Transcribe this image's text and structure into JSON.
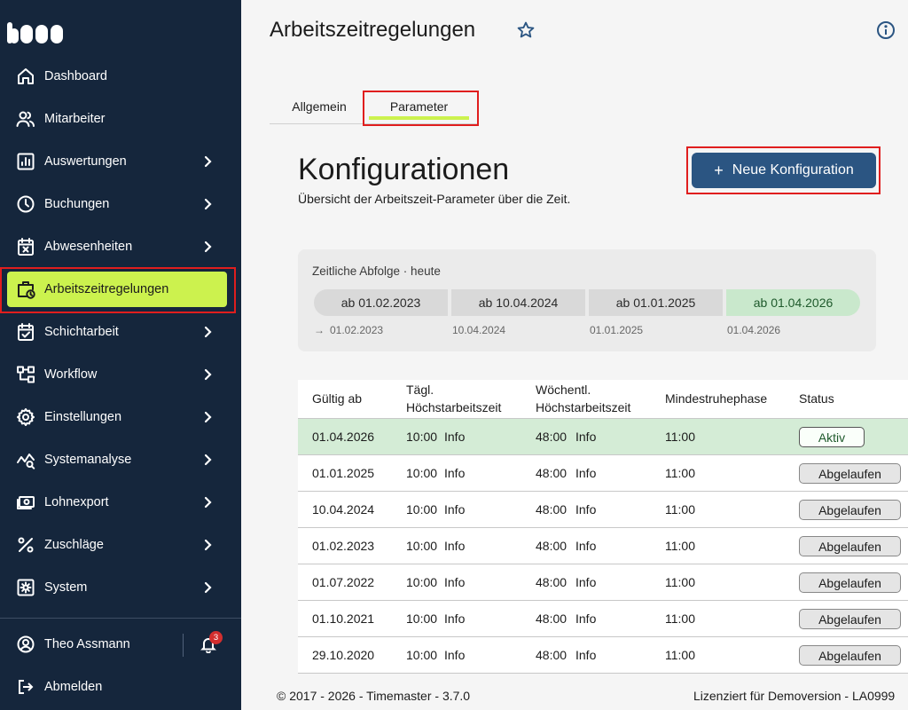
{
  "sidebar": {
    "logo_icon": "timemaster-logo",
    "items": [
      {
        "label": "Dashboard",
        "icon": "home-icon",
        "chevron": false
      },
      {
        "label": "Mitarbeiter",
        "icon": "users-icon",
        "chevron": false
      },
      {
        "label": "Auswertungen",
        "icon": "chart-icon",
        "chevron": true
      },
      {
        "label": "Buchungen",
        "icon": "clock-icon",
        "chevron": true
      },
      {
        "label": "Abwesenheiten",
        "icon": "calendar-x-icon",
        "chevron": true
      },
      {
        "label": "Arbeitszeitregelungen",
        "icon": "briefcase-clock-icon",
        "chevron": false,
        "active": true
      },
      {
        "label": "Schichtarbeit",
        "icon": "calendar-check-icon",
        "chevron": true
      },
      {
        "label": "Workflow",
        "icon": "workflow-icon",
        "chevron": true
      },
      {
        "label": "Einstellungen",
        "icon": "gear-icon",
        "chevron": true
      },
      {
        "label": "Systemanalyse",
        "icon": "analysis-icon",
        "chevron": true
      },
      {
        "label": "Lohnexport",
        "icon": "money-icon",
        "chevron": true
      },
      {
        "label": "Zuschläge",
        "icon": "percent-icon",
        "chevron": true
      },
      {
        "label": "System",
        "icon": "system-gear-icon",
        "chevron": true
      }
    ],
    "user": {
      "name": "Theo Assmann",
      "notifications": "3"
    },
    "logout": "Abmelden",
    "active_color": "#ccf24e",
    "bg_color": "#15263c"
  },
  "header": {
    "title": "Arbeitszeitregelungen",
    "favorite_icon": "star-icon",
    "info_icon": "info-icon"
  },
  "tabs": [
    {
      "label": "Allgemein",
      "selected": false
    },
    {
      "label": "Parameter",
      "selected": true
    }
  ],
  "section": {
    "title": "Konfigurationen",
    "subtitle": "Übersicht der Arbeitszeit-Parameter über die Zeit.",
    "new_button": "Neue Konfiguration",
    "new_button_icon": "+",
    "accent_color": "#2b5582"
  },
  "timeline": {
    "title": "Zeitliche Abfolge · heute",
    "today_marker": "→",
    "segments": [
      {
        "label": "ab 01.02.2023",
        "date": "01.02.2023",
        "active": false
      },
      {
        "label": "ab 10.04.2024",
        "date": "10.04.2024",
        "active": false
      },
      {
        "label": "ab 01.01.2025",
        "date": "01.01.2025",
        "active": false
      },
      {
        "label": "ab 01.04.2026",
        "date": "01.04.2026",
        "active": true
      }
    ]
  },
  "table": {
    "headers": {
      "valid_from": "Gültig ab",
      "daily_l1": "Tägl.",
      "daily_l2": "Höchstarbeitszeit",
      "weekly_l1": "Wöchentl.",
      "weekly_l2": "Höchstarbeitszeit",
      "rest": "Mindestruhephase",
      "status": "Status"
    },
    "info_label": "Info",
    "rows": [
      {
        "valid_from": "01.04.2026",
        "daily": "10:00",
        "weekly": "48:00",
        "rest": "11:00",
        "status": "Aktiv",
        "active": true
      },
      {
        "valid_from": "01.01.2025",
        "daily": "10:00",
        "weekly": "48:00",
        "rest": "11:00",
        "status": "Abgelaufen",
        "active": false
      },
      {
        "valid_from": "10.04.2024",
        "daily": "10:00",
        "weekly": "48:00",
        "rest": "11:00",
        "status": "Abgelaufen",
        "active": false
      },
      {
        "valid_from": "01.02.2023",
        "daily": "10:00",
        "weekly": "48:00",
        "rest": "11:00",
        "status": "Abgelaufen",
        "active": false
      },
      {
        "valid_from": "01.07.2022",
        "daily": "10:00",
        "weekly": "48:00",
        "rest": "11:00",
        "status": "Abgelaufen",
        "active": false
      },
      {
        "valid_from": "01.10.2021",
        "daily": "10:00",
        "weekly": "48:00",
        "rest": "11:00",
        "status": "Abgelaufen",
        "active": false
      },
      {
        "valid_from": "29.10.2020",
        "daily": "10:00",
        "weekly": "48:00",
        "rest": "11:00",
        "status": "Abgelaufen",
        "active": false
      }
    ]
  },
  "footer": {
    "copyright": "© 2017 - 2026 - Timemaster - 3.7.0",
    "license": "Lizenziert für Demoversion - LA0999"
  }
}
